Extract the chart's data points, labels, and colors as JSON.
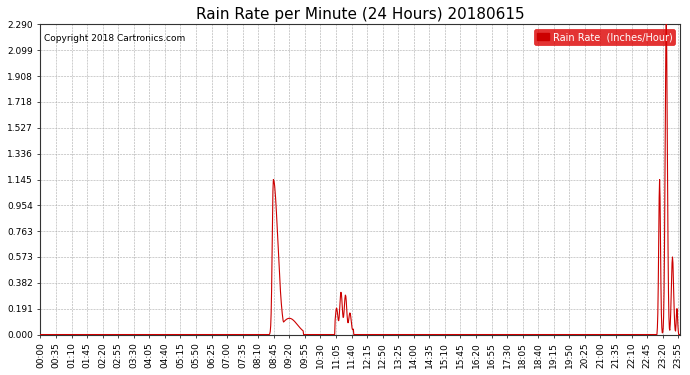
{
  "title": "Rain Rate per Minute (24 Hours) 20180615",
  "copyright": "Copyright 2018 Cartronics.com",
  "legend_label": "Rain Rate  (Inches/Hour)",
  "yticks": [
    0.0,
    0.191,
    0.382,
    0.573,
    0.763,
    0.954,
    1.145,
    1.336,
    1.527,
    1.718,
    1.908,
    2.099,
    2.29
  ],
  "ymax": 2.29,
  "ymin": 0.0,
  "line_color": "#cc0000",
  "background_color": "#ffffff",
  "grid_color": "#aaaaaa",
  "title_fontsize": 11,
  "axis_fontsize": 6.5,
  "total_minutes": 1440,
  "x_tick_interval": 35,
  "legend_bg": "#dd0000",
  "legend_fg": "#ffffff"
}
